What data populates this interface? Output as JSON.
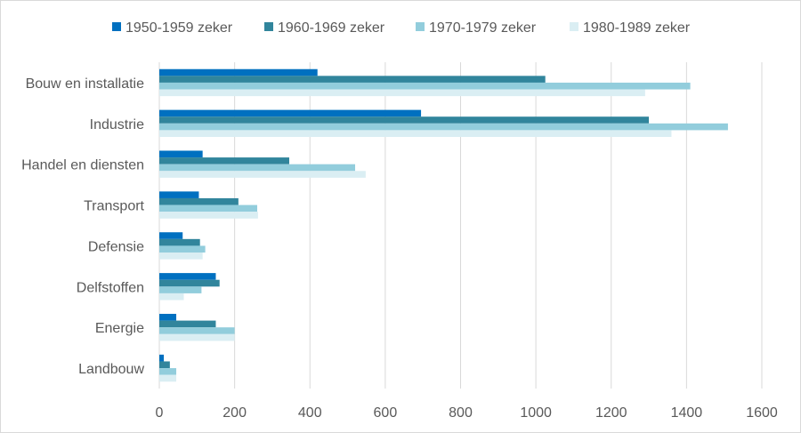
{
  "chart_data": {
    "type": "bar",
    "orientation": "horizontal",
    "categories": [
      "Bouw en installatie",
      "Industrie",
      "Handel en diensten",
      "Transport",
      "Defensie",
      "Delfstoffen",
      "Energie",
      "Landbouw"
    ],
    "series": [
      {
        "name": "1950-1959 zeker",
        "color": "#0070c0",
        "values": [
          420,
          695,
          115,
          105,
          62,
          150,
          45,
          12
        ]
      },
      {
        "name": "1960-1969 zeker",
        "color": "#31859c",
        "values": [
          1025,
          1300,
          345,
          210,
          108,
          160,
          150,
          28
        ]
      },
      {
        "name": "1970-1979 zeker",
        "color": "#92cddc",
        "values": [
          1410,
          1510,
          520,
          260,
          122,
          112,
          200,
          45
        ]
      },
      {
        "name": "1980-1989 zeker",
        "color": "#daeef3",
        "values": [
          1290,
          1360,
          548,
          262,
          115,
          65,
          200,
          45
        ]
      }
    ],
    "xlim": [
      0,
      1600
    ],
    "xticks": [
      "0",
      "200",
      "400",
      "600",
      "800",
      "1000",
      "1200",
      "1400",
      "1600"
    ],
    "grid": true,
    "legend_position": "top"
  }
}
